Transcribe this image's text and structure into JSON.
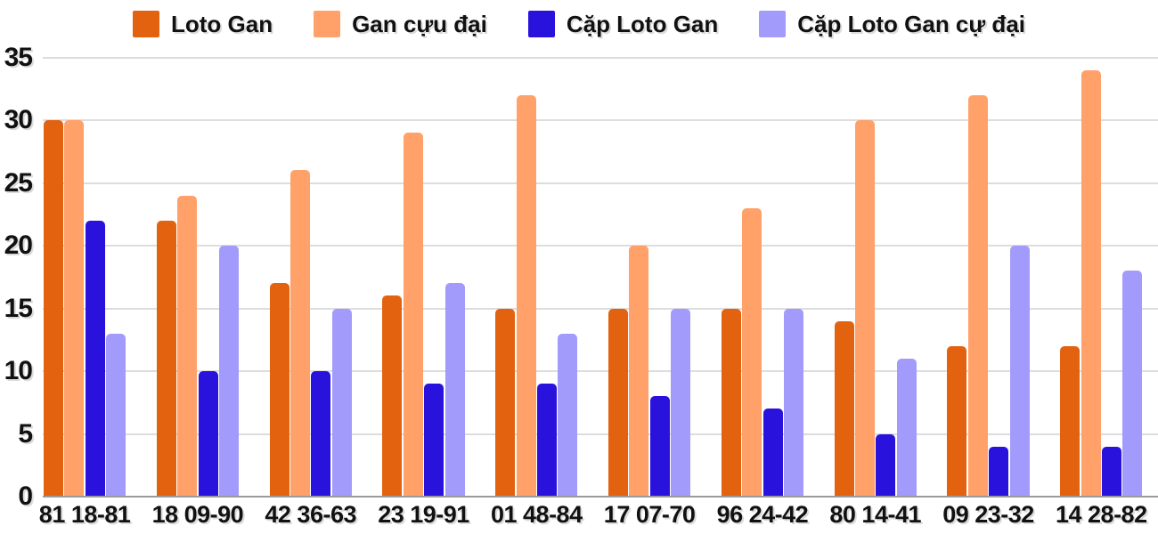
{
  "chart_data": {
    "type": "bar",
    "title": "",
    "xlabel": "",
    "ylabel": "",
    "categories": [
      "81 18-81",
      "18 09-90",
      "42 36-63",
      "23 19-91",
      "01 48-84",
      "17 07-70",
      "96 24-42",
      "80 14-41",
      "09 23-32",
      "14 28-82"
    ],
    "series": [
      {
        "name": "Loto Gan",
        "color": "#e2620f",
        "values": [
          30,
          22,
          17,
          16,
          15,
          15,
          15,
          14,
          12,
          12
        ]
      },
      {
        "name": "Gan cựu đại",
        "color": "#ffa169",
        "values": [
          30,
          24,
          26,
          29,
          32,
          20,
          23,
          30,
          32,
          34
        ]
      },
      {
        "name": "Cặp Loto Gan",
        "color": "#2a12dd",
        "values": [
          22,
          10,
          10,
          9,
          9,
          8,
          7,
          5,
          4,
          4
        ]
      },
      {
        "name": "Cặp Loto Gan cự đại",
        "color": "#a29bfb",
        "values": [
          13,
          20,
          15,
          17,
          13,
          15,
          15,
          11,
          20,
          18
        ]
      }
    ],
    "ylim": [
      0,
      35
    ],
    "yticks": [
      0,
      5,
      10,
      15,
      20,
      25,
      30,
      35
    ],
    "grid": true,
    "legend_position": "top"
  },
  "colors": {
    "background": "#ffffff",
    "gridline": "#dddddd",
    "baseline": "#9b9b9b",
    "label_text": "#111111"
  }
}
